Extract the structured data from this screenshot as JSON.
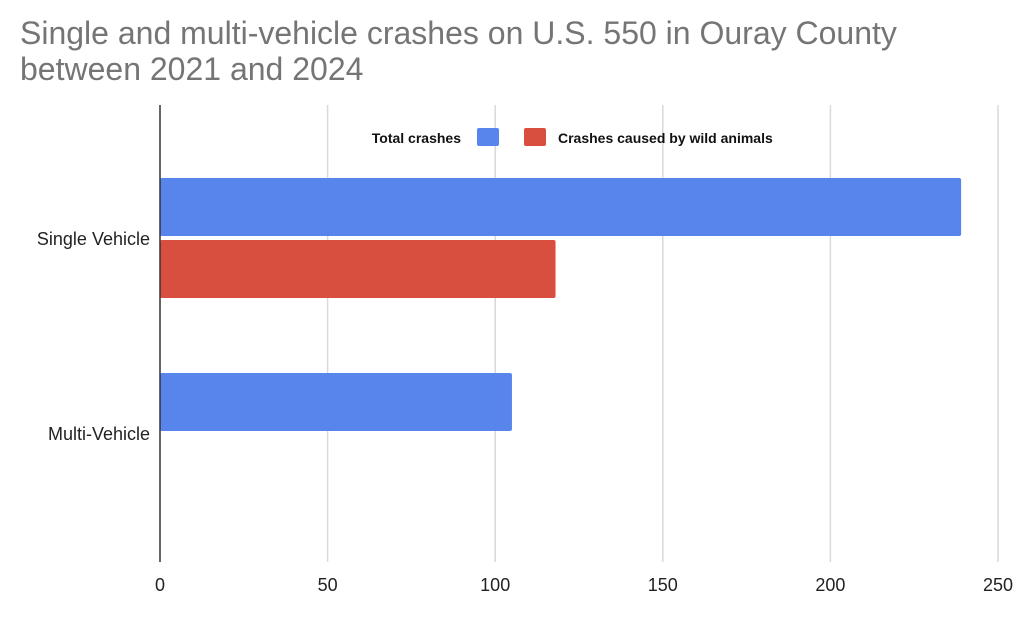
{
  "chart_data": {
    "type": "bar",
    "orientation": "horizontal",
    "title_lines": [
      "Single and multi-vehicle crashes on U.S. 550 in Ouray County",
      "between 2021 and 2024"
    ],
    "categories": [
      "Single Vehicle",
      "Multi-Vehicle"
    ],
    "series": [
      {
        "name": "Total crashes",
        "values": [
          239,
          105
        ],
        "color": "#5885ec"
      },
      {
        "name": "Crashes caused by wild animals",
        "values": [
          118,
          0
        ],
        "color": "#d94f3f"
      }
    ],
    "xlim": [
      0,
      250
    ],
    "xticks": [
      0,
      50,
      100,
      150,
      200,
      250
    ],
    "grid": true,
    "legend_position": "top"
  }
}
